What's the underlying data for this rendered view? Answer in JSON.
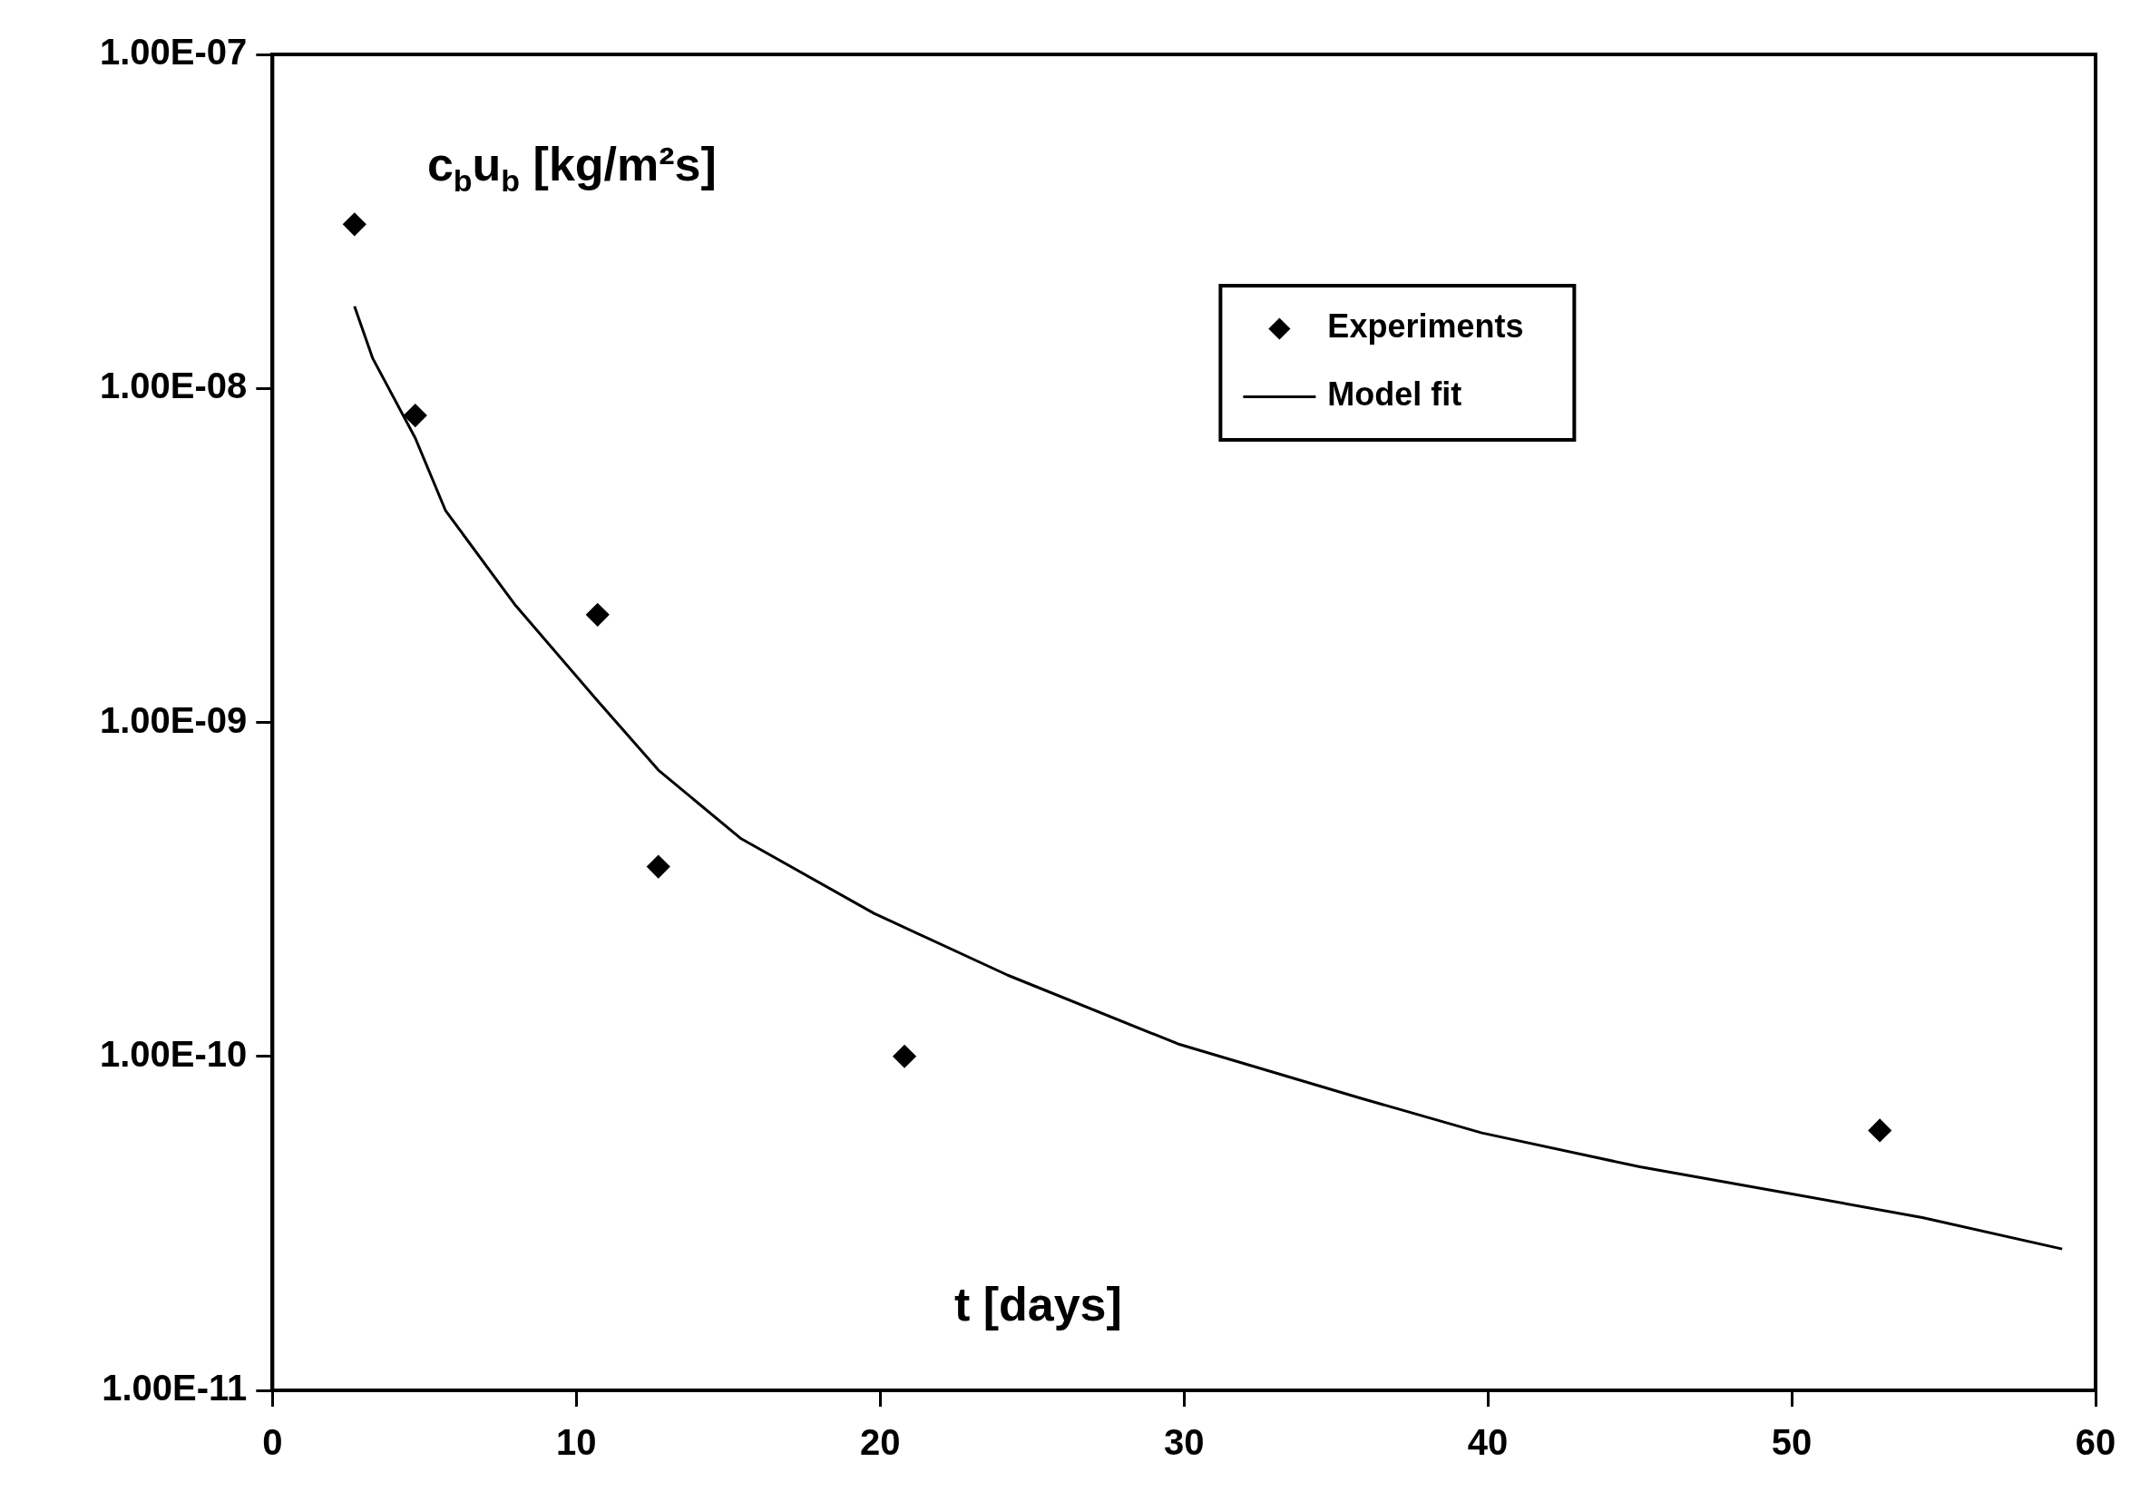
{
  "chart_data": {
    "type": "scatter",
    "xlabel": "t [days]",
    "ylabel": "c$_{b}$u$_{b}$ [kg/m²s]",
    "log": "y",
    "xlim": [
      0,
      60
    ],
    "xticks": [
      0,
      10,
      20,
      30,
      40,
      50,
      60
    ],
    "ylim": [
      1e-11,
      1e-07
    ],
    "yticks": [
      {
        "value": 1e-11,
        "label": "1.00E-11"
      },
      {
        "value": 1e-10,
        "label": "1.00E-10"
      },
      {
        "value": 1e-09,
        "label": "1.00E-09"
      },
      {
        "value": 1e-08,
        "label": "1.00E-08"
      },
      {
        "value": 1e-07,
        "label": "1.00E-07"
      }
    ],
    "grid": false,
    "legend": "top right",
    "series": [
      {
        "name": "Experiments",
        "type": "scatter",
        "marker": "diamond",
        "color": "#000000",
        "x": [
          2.7,
          4.7,
          10.7,
          12.7,
          20.8,
          52.9
        ],
        "values": [
          3.1e-08,
          8.3e-09,
          2.1e-09,
          3.7e-10,
          1e-10,
          6e-11
        ]
      },
      {
        "name": "Model fit",
        "type": "line",
        "marker": "none",
        "color": "#000000",
        "x": [
          2.7,
          3.3,
          4.7,
          5.7,
          8,
          10.7,
          12.7,
          15.4,
          19.8,
          24.2,
          29.8,
          35.8,
          39.8,
          45,
          50.1,
          54.3,
          58.9
        ],
        "values": [
          1.76e-08,
          1.23e-08,
          7.1e-09,
          4.3e-09,
          2.24e-09,
          1.16e-09,
          7.2e-10,
          4.5e-10,
          2.68e-10,
          1.75e-10,
          1.09e-10,
          7.5e-11,
          5.9e-11,
          4.67e-11,
          3.86e-11,
          3.29e-11,
          2.65e-11
        ]
      }
    ]
  }
}
